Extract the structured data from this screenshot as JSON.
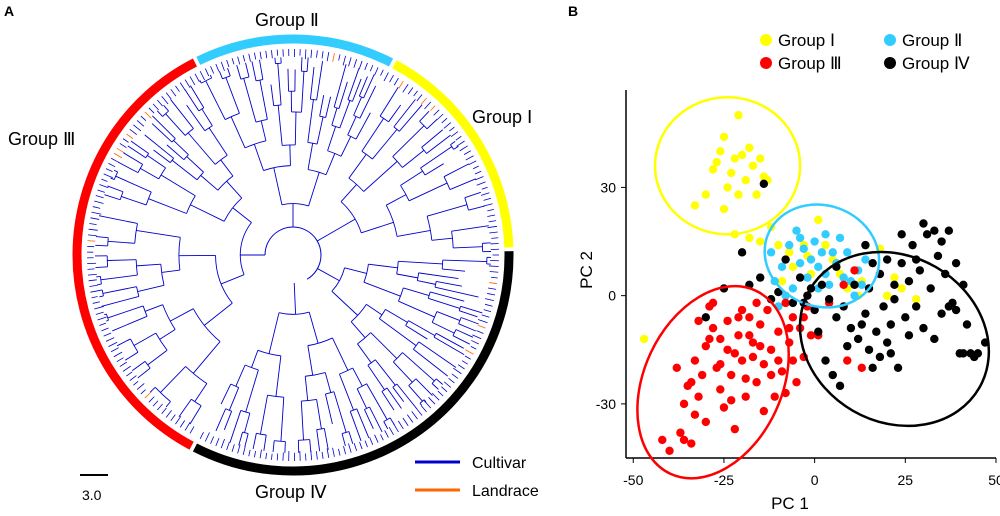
{
  "panels": {
    "a_label": "A",
    "b_label": "B"
  },
  "tree": {
    "groups": [
      {
        "label": "Group Ⅰ",
        "color": "#ffff00"
      },
      {
        "label": "Group Ⅱ",
        "color": "#33ccff"
      },
      {
        "label": "Group Ⅲ",
        "color": "#ff0000"
      },
      {
        "label": "Group Ⅳ",
        "color": "#000000"
      }
    ],
    "scale_label": "3.0",
    "legend": [
      {
        "label": "Cultivar",
        "color": "#0000cc"
      },
      {
        "label": "Landrace",
        "color": "#ff6600"
      }
    ]
  },
  "chart_data": {
    "type": "scatter",
    "title": "",
    "xlabel": "PC 1",
    "ylabel": "PC 2",
    "xlim": [
      -52,
      50
    ],
    "ylim": [
      -45,
      57
    ],
    "xticks": [
      -50,
      -25,
      0,
      25,
      50
    ],
    "yticks": [
      -30,
      0,
      30
    ],
    "legend_position": "top",
    "series": [
      {
        "name": "Group Ⅰ",
        "color": "#ffff00",
        "points": [
          [
            -47,
            -12
          ],
          [
            -33,
            25
          ],
          [
            -30,
            28
          ],
          [
            -28,
            35
          ],
          [
            -27,
            37
          ],
          [
            -26,
            40
          ],
          [
            -25,
            44
          ],
          [
            -24,
            30
          ],
          [
            -23,
            34
          ],
          [
            -22,
            38
          ],
          [
            -21,
            50
          ],
          [
            -21,
            28
          ],
          [
            -20,
            39
          ],
          [
            -19,
            32
          ],
          [
            -18,
            41
          ],
          [
            -17,
            36
          ],
          [
            -16,
            28
          ],
          [
            -15,
            38
          ],
          [
            -14,
            33
          ],
          [
            -13,
            32
          ],
          [
            -25,
            24
          ],
          [
            -22,
            17
          ],
          [
            -18,
            16
          ],
          [
            -15,
            15
          ],
          [
            -12,
            19
          ],
          [
            -10,
            14
          ],
          [
            -7,
            12
          ],
          [
            -5,
            18
          ],
          [
            -3,
            14
          ],
          [
            -2,
            11
          ],
          [
            -1,
            6
          ],
          [
            1,
            21
          ],
          [
            3,
            14
          ],
          [
            5,
            10
          ],
          [
            7,
            6
          ],
          [
            9,
            2
          ],
          [
            12,
            0
          ],
          [
            13,
            4
          ],
          [
            18,
            13
          ],
          [
            20,
            0
          ],
          [
            22,
            5
          ],
          [
            24,
            2
          ],
          [
            28,
            -1
          ],
          [
            -6,
            8
          ],
          [
            -9,
            4
          ]
        ]
      },
      {
        "name": "Group Ⅱ",
        "color": "#33ccff",
        "points": [
          [
            -9,
            8
          ],
          [
            -7,
            14
          ],
          [
            -5,
            18
          ],
          [
            -4,
            9
          ],
          [
            -3,
            13
          ],
          [
            -2,
            5
          ],
          [
            -1,
            10
          ],
          [
            0,
            15
          ],
          [
            1,
            8
          ],
          [
            2,
            12
          ],
          [
            3,
            6
          ],
          [
            4,
            3
          ],
          [
            5,
            12
          ],
          [
            6,
            9
          ],
          [
            7,
            16
          ],
          [
            8,
            5
          ],
          [
            10,
            4
          ],
          [
            11,
            0
          ],
          [
            12,
            7
          ],
          [
            13,
            3
          ],
          [
            14,
            10
          ],
          [
            -6,
            2
          ],
          [
            -8,
            0
          ],
          [
            -10,
            -3
          ],
          [
            -12,
            12
          ],
          [
            -11,
            4
          ],
          [
            -4,
            16
          ],
          [
            1,
            2
          ],
          [
            3,
            17
          ],
          [
            9,
            12
          ]
        ]
      },
      {
        "name": "Group Ⅲ",
        "color": "#ff0000",
        "points": [
          [
            -42,
            -40
          ],
          [
            -40,
            -43
          ],
          [
            -38,
            -20
          ],
          [
            -37,
            -38
          ],
          [
            -36,
            -30
          ],
          [
            -35,
            -25
          ],
          [
            -34,
            -41
          ],
          [
            -33,
            -18
          ],
          [
            -32,
            -28
          ],
          [
            -31,
            -22
          ],
          [
            -30,
            -35
          ],
          [
            -29,
            -12
          ],
          [
            -28,
            -9
          ],
          [
            -27,
            -20
          ],
          [
            -26,
            -26
          ],
          [
            -25,
            -31
          ],
          [
            -24,
            -15
          ],
          [
            -23,
            -22
          ],
          [
            -22,
            -37
          ],
          [
            -21,
            -11
          ],
          [
            -20,
            -18
          ],
          [
            -19,
            -28
          ],
          [
            -18,
            -6
          ],
          [
            -17,
            -13
          ],
          [
            -16,
            -24
          ],
          [
            -15,
            -8
          ],
          [
            -14,
            -19
          ],
          [
            -13,
            -4
          ],
          [
            -12,
            -15
          ],
          [
            -11,
            -28
          ],
          [
            -10,
            -10
          ],
          [
            -9,
            -21
          ],
          [
            -8,
            -2
          ],
          [
            -7,
            -13
          ],
          [
            -6,
            -6
          ],
          [
            -5,
            -24
          ],
          [
            -4,
            -9
          ],
          [
            -3,
            -17
          ],
          [
            -2,
            -3
          ],
          [
            -1,
            -11
          ],
          [
            -16,
            -2
          ],
          [
            -18,
            -11
          ],
          [
            -20,
            -4
          ],
          [
            -22,
            -16
          ],
          [
            -24,
            -7
          ],
          [
            -26,
            -19
          ],
          [
            -28,
            -2
          ],
          [
            -30,
            -14
          ],
          [
            -32,
            -7
          ],
          [
            -34,
            -24
          ],
          [
            -14,
            -32
          ],
          [
            -12,
            -22
          ],
          [
            -8,
            -27
          ],
          [
            -6,
            -18
          ],
          [
            -26,
            -12
          ],
          [
            -23,
            -29
          ],
          [
            -19,
            -23
          ],
          [
            -15,
            -14
          ],
          [
            -10,
            -18
          ],
          [
            -7,
            -9
          ],
          [
            -3,
            -6
          ],
          [
            1,
            -11
          ],
          [
            4,
            -2
          ],
          [
            8,
            3
          ],
          [
            11,
            7
          ],
          [
            -21,
            -6
          ],
          [
            -17,
            -17
          ],
          [
            -29,
            -3
          ],
          [
            -33,
            -33
          ],
          [
            -36,
            -40
          ],
          [
            9,
            -18
          ],
          [
            13,
            -20
          ]
        ]
      },
      {
        "name": "Group Ⅳ",
        "color": "#000000",
        "points": [
          [
            -18,
            3
          ],
          [
            -15,
            5
          ],
          [
            -12,
            -1
          ],
          [
            -10,
            1
          ],
          [
            -8,
            10
          ],
          [
            -6,
            -2
          ],
          [
            -4,
            5
          ],
          [
            -2,
            0
          ],
          [
            0,
            -4
          ],
          [
            2,
            3
          ],
          [
            4,
            -1
          ],
          [
            6,
            -6
          ],
          [
            8,
            -3
          ],
          [
            10,
            -9
          ],
          [
            12,
            -12
          ],
          [
            14,
            -5
          ],
          [
            15,
            -15
          ],
          [
            16,
            -20
          ],
          [
            17,
            -10
          ],
          [
            18,
            -17
          ],
          [
            19,
            -3
          ],
          [
            20,
            -13
          ],
          [
            21,
            -8
          ],
          [
            22,
            3
          ],
          [
            23,
            -20
          ],
          [
            24,
            9
          ],
          [
            25,
            -6
          ],
          [
            26,
            4
          ],
          [
            27,
            14
          ],
          [
            28,
            -3
          ],
          [
            29,
            7
          ],
          [
            30,
            -9
          ],
          [
            31,
            17
          ],
          [
            32,
            2
          ],
          [
            33,
            -12
          ],
          [
            34,
            11
          ],
          [
            35,
            -5
          ],
          [
            36,
            6
          ],
          [
            37,
            18
          ],
          [
            38,
            -2
          ],
          [
            39,
            9
          ],
          [
            40,
            -16
          ],
          [
            41,
            3
          ],
          [
            42,
            -8
          ],
          [
            43,
            -16
          ],
          [
            44,
            -17
          ],
          [
            45,
            -16
          ],
          [
            47,
            -13
          ],
          [
            5,
            -22
          ],
          [
            7,
            -25
          ],
          [
            3,
            -18
          ],
          [
            9,
            -14
          ],
          [
            1,
            -10
          ],
          [
            14,
            14
          ],
          [
            16,
            9
          ],
          [
            18,
            6
          ],
          [
            20,
            10
          ],
          [
            22,
            -1
          ],
          [
            24,
            17
          ],
          [
            26,
            -11
          ],
          [
            28,
            10
          ],
          [
            30,
            20
          ],
          [
            33,
            18
          ],
          [
            35,
            15
          ],
          [
            37,
            -3
          ],
          [
            39,
            -4
          ],
          [
            41,
            -16
          ],
          [
            -14,
            31
          ],
          [
            -20,
            12
          ],
          [
            -25,
            2
          ],
          [
            -30,
            -6
          ],
          [
            -1,
            2
          ],
          [
            11,
            3
          ],
          [
            13,
            -8
          ],
          [
            21,
            -16
          ],
          [
            15,
            2
          ],
          [
            -3,
            -2
          ],
          [
            6,
            8
          ]
        ]
      }
    ],
    "ellipses": [
      {
        "group": "Group Ⅰ",
        "color": "#ffff00",
        "cx": -24,
        "cy": 36,
        "rx": 20,
        "ry": 19,
        "angle": 0
      },
      {
        "group": "Group Ⅱ",
        "color": "#33ccff",
        "cx": 2,
        "cy": 11,
        "rx": 16,
        "ry": 14,
        "angle": 20
      },
      {
        "group": "Group Ⅲ",
        "color": "#ff0000",
        "cx": -28,
        "cy": -24,
        "rx": 19,
        "ry": 28,
        "angle": 25
      },
      {
        "group": "Group Ⅳ",
        "color": "#000000",
        "cx": 22,
        "cy": -12,
        "rx": 27,
        "ry": 23,
        "angle": 30
      }
    ]
  }
}
